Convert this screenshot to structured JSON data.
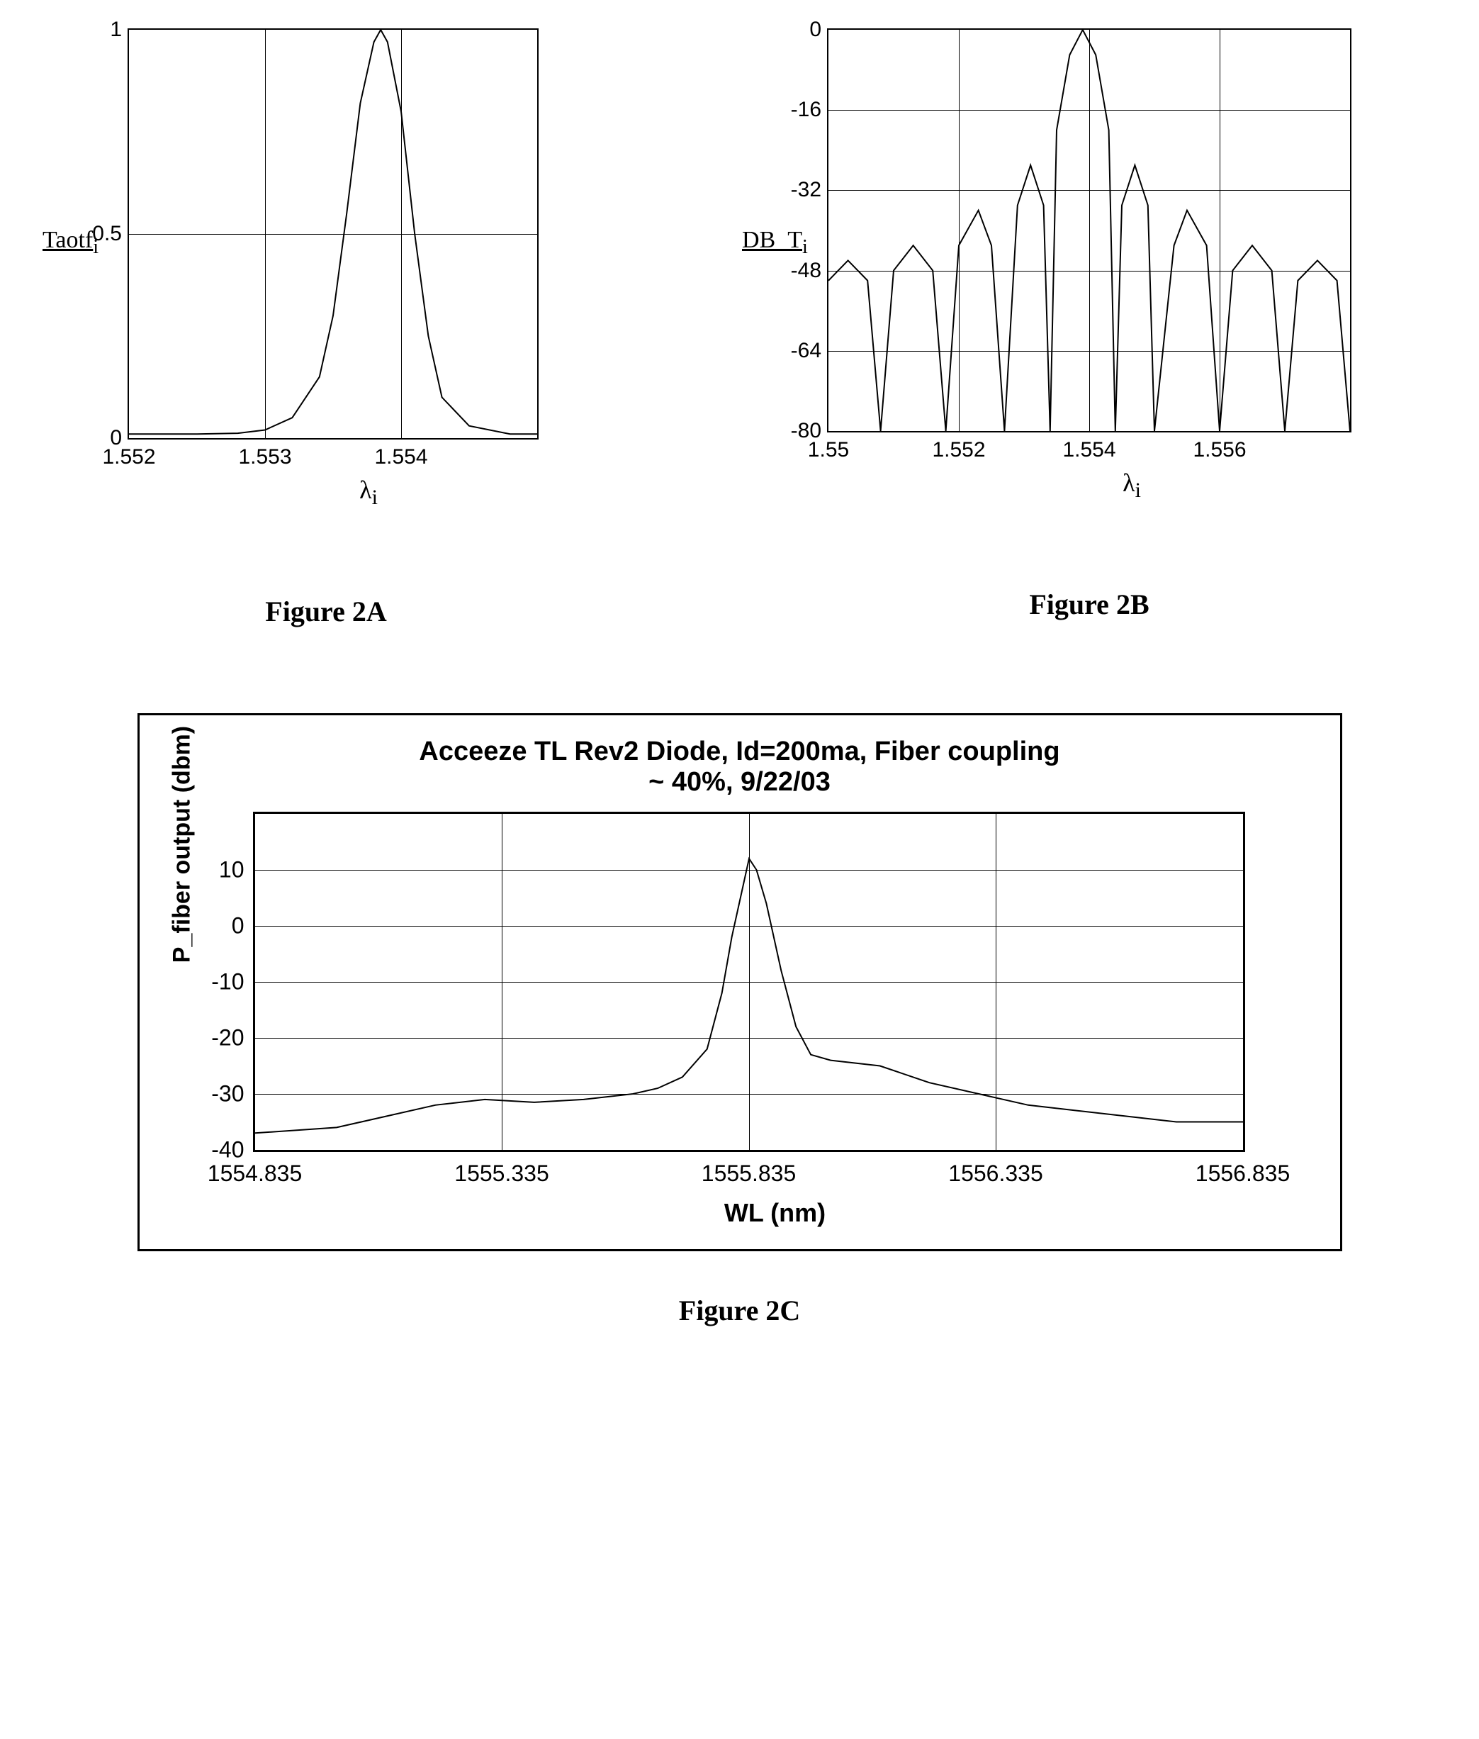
{
  "chartA": {
    "type": "line",
    "caption": "Figure 2A",
    "ylabel_html": "Taotf<sub>i</sub>",
    "xlabel_html": "λ<sub>i</sub>",
    "xlim": [
      1.552,
      1.555
    ],
    "ylim": [
      0,
      1
    ],
    "xticks": [
      {
        "value": 1.552,
        "label": "1.552"
      },
      {
        "value": 1.553,
        "label": "1.553"
      },
      {
        "value": 1.554,
        "label": "1.554"
      }
    ],
    "yticks": [
      {
        "value": 0,
        "label": "0"
      },
      {
        "value": 0.5,
        "label": "0.5"
      },
      {
        "value": 1,
        "label": "1"
      }
    ],
    "grid_v": [
      1.553,
      1.554
    ],
    "grid_h": [
      0.5
    ],
    "line_color": "#000000",
    "line_width": 2,
    "data": [
      {
        "x": 1.552,
        "y": 0.01
      },
      {
        "x": 1.5525,
        "y": 0.01
      },
      {
        "x": 1.5528,
        "y": 0.012
      },
      {
        "x": 1.553,
        "y": 0.02
      },
      {
        "x": 1.5532,
        "y": 0.05
      },
      {
        "x": 1.5534,
        "y": 0.15
      },
      {
        "x": 1.5535,
        "y": 0.3
      },
      {
        "x": 1.5536,
        "y": 0.55
      },
      {
        "x": 1.5537,
        "y": 0.82
      },
      {
        "x": 1.5538,
        "y": 0.97
      },
      {
        "x": 1.55385,
        "y": 1.0
      },
      {
        "x": 1.5539,
        "y": 0.97
      },
      {
        "x": 1.554,
        "y": 0.8
      },
      {
        "x": 1.5541,
        "y": 0.5
      },
      {
        "x": 1.5542,
        "y": 0.25
      },
      {
        "x": 1.5543,
        "y": 0.1
      },
      {
        "x": 1.5545,
        "y": 0.03
      },
      {
        "x": 1.5548,
        "y": 0.01
      },
      {
        "x": 1.555,
        "y": 0.01
      }
    ]
  },
  "chartB": {
    "type": "line",
    "caption": "Figure 2B",
    "ylabel_html": "DB_T<sub>i</sub>",
    "xlabel_html": "λ<sub>i</sub>",
    "xlim": [
      1.55,
      1.558
    ],
    "ylim": [
      -80,
      0
    ],
    "xticks": [
      {
        "value": 1.55,
        "label": "1.55"
      },
      {
        "value": 1.552,
        "label": "1.552"
      },
      {
        "value": 1.554,
        "label": "1.554"
      },
      {
        "value": 1.556,
        "label": "1.556"
      }
    ],
    "yticks": [
      {
        "value": 0,
        "label": "0"
      },
      {
        "value": -16,
        "label": "-16"
      },
      {
        "value": -32,
        "label": "-32"
      },
      {
        "value": -48,
        "label": "-48"
      },
      {
        "value": -64,
        "label": "-64"
      },
      {
        "value": -80,
        "label": "-80"
      }
    ],
    "grid_v": [
      1.552,
      1.554,
      1.556
    ],
    "grid_h": [
      -16,
      -32,
      -48,
      -64
    ],
    "line_color": "#000000",
    "line_width": 2,
    "data": [
      {
        "x": 1.55,
        "y": -50
      },
      {
        "x": 1.5503,
        "y": -46
      },
      {
        "x": 1.5506,
        "y": -50
      },
      {
        "x": 1.5508,
        "y": -80
      },
      {
        "x": 1.551,
        "y": -48
      },
      {
        "x": 1.5513,
        "y": -43
      },
      {
        "x": 1.5516,
        "y": -48
      },
      {
        "x": 1.5518,
        "y": -80
      },
      {
        "x": 1.552,
        "y": -43
      },
      {
        "x": 1.5523,
        "y": -36
      },
      {
        "x": 1.5525,
        "y": -43
      },
      {
        "x": 1.5527,
        "y": -80
      },
      {
        "x": 1.5529,
        "y": -35
      },
      {
        "x": 1.5531,
        "y": -27
      },
      {
        "x": 1.5533,
        "y": -35
      },
      {
        "x": 1.5534,
        "y": -80
      },
      {
        "x": 1.5535,
        "y": -20
      },
      {
        "x": 1.5537,
        "y": -5
      },
      {
        "x": 1.5539,
        "y": 0
      },
      {
        "x": 1.5541,
        "y": -5
      },
      {
        "x": 1.5543,
        "y": -20
      },
      {
        "x": 1.5544,
        "y": -80
      },
      {
        "x": 1.5545,
        "y": -35
      },
      {
        "x": 1.5547,
        "y": -27
      },
      {
        "x": 1.5549,
        "y": -35
      },
      {
        "x": 1.555,
        "y": -80
      },
      {
        "x": 1.5553,
        "y": -43
      },
      {
        "x": 1.5555,
        "y": -36
      },
      {
        "x": 1.5558,
        "y": -43
      },
      {
        "x": 1.556,
        "y": -80
      },
      {
        "x": 1.5562,
        "y": -48
      },
      {
        "x": 1.5565,
        "y": -43
      },
      {
        "x": 1.5568,
        "y": -48
      },
      {
        "x": 1.557,
        "y": -80
      },
      {
        "x": 1.5572,
        "y": -50
      },
      {
        "x": 1.5575,
        "y": -46
      },
      {
        "x": 1.5578,
        "y": -50
      },
      {
        "x": 1.558,
        "y": -80
      }
    ]
  },
  "chartC": {
    "type": "line",
    "caption": "Figure 2C",
    "title_line1": "Acceeze TL Rev2 Diode, Id=200ma, Fiber coupling",
    "title_line2": "~ 40%, 9/22/03",
    "ylabel": "P_fiber output (dbm)",
    "xlabel": "WL (nm)",
    "xlim": [
      1554.835,
      1556.835
    ],
    "ylim": [
      -40,
      20
    ],
    "xticks": [
      {
        "value": 1554.835,
        "label": "1554.835"
      },
      {
        "value": 1555.335,
        "label": "1555.335"
      },
      {
        "value": 1555.835,
        "label": "1555.835"
      },
      {
        "value": 1556.335,
        "label": "1556.335"
      },
      {
        "value": 1556.835,
        "label": "1556.835"
      }
    ],
    "yticks": [
      {
        "value": 10,
        "label": "10"
      },
      {
        "value": 0,
        "label": "0"
      },
      {
        "value": -10,
        "label": "-10"
      },
      {
        "value": -20,
        "label": "-20"
      },
      {
        "value": -30,
        "label": "-30"
      },
      {
        "value": -40,
        "label": "-40"
      }
    ],
    "grid_v": [
      1555.335,
      1555.835,
      1556.335
    ],
    "grid_h": [
      10,
      0,
      -10,
      -20,
      -30
    ],
    "line_color": "#000000",
    "line_width": 2,
    "border_width": 3,
    "grid_color": "#000000",
    "background_color": "#ffffff",
    "title_fontsize": 38,
    "label_fontsize": 34,
    "tick_fontsize": 32,
    "data": [
      {
        "x": 1554.835,
        "y": -37
      },
      {
        "x": 1555.0,
        "y": -36
      },
      {
        "x": 1555.1,
        "y": -34
      },
      {
        "x": 1555.2,
        "y": -32
      },
      {
        "x": 1555.3,
        "y": -31
      },
      {
        "x": 1555.4,
        "y": -31.5
      },
      {
        "x": 1555.5,
        "y": -31
      },
      {
        "x": 1555.6,
        "y": -30
      },
      {
        "x": 1555.65,
        "y": -29
      },
      {
        "x": 1555.7,
        "y": -27
      },
      {
        "x": 1555.75,
        "y": -22
      },
      {
        "x": 1555.78,
        "y": -12
      },
      {
        "x": 1555.8,
        "y": -2
      },
      {
        "x": 1555.82,
        "y": 6
      },
      {
        "x": 1555.835,
        "y": 12
      },
      {
        "x": 1555.85,
        "y": 10
      },
      {
        "x": 1555.87,
        "y": 4
      },
      {
        "x": 1555.9,
        "y": -8
      },
      {
        "x": 1555.93,
        "y": -18
      },
      {
        "x": 1555.96,
        "y": -23
      },
      {
        "x": 1556.0,
        "y": -24
      },
      {
        "x": 1556.1,
        "y": -25
      },
      {
        "x": 1556.2,
        "y": -28
      },
      {
        "x": 1556.3,
        "y": -30
      },
      {
        "x": 1556.4,
        "y": -32
      },
      {
        "x": 1556.5,
        "y": -33
      },
      {
        "x": 1556.6,
        "y": -34
      },
      {
        "x": 1556.7,
        "y": -35
      },
      {
        "x": 1556.835,
        "y": -35
      }
    ]
  }
}
